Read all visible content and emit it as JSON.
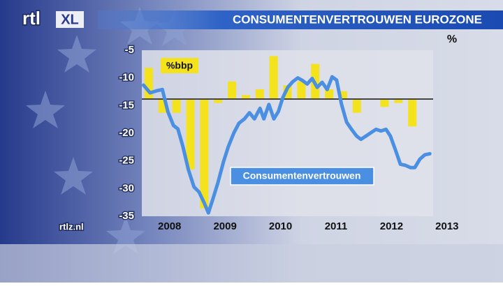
{
  "branding": {
    "logo": "rtl",
    "logo_suffix": "XL",
    "site": "rtlz.nl"
  },
  "chart_data": {
    "type": "combo",
    "title": "CONSUMENTENVERTROUWEN EUROZONE",
    "y_label": "%",
    "xlim": [
      2008,
      2013.25
    ],
    "xticks": [
      {
        "value": 2008.5,
        "label": "2008"
      },
      {
        "value": 2009.5,
        "label": "2009"
      },
      {
        "value": 2010.5,
        "label": "2010"
      },
      {
        "value": 2011.5,
        "label": "2011"
      },
      {
        "value": 2012.5,
        "label": "2012"
      },
      {
        "value": 2013.5,
        "label": "2013"
      }
    ],
    "ylim": [
      -35,
      -5
    ],
    "yticks": [
      -35,
      -30,
      -25,
      -20,
      -15,
      -10,
      -5
    ],
    "y2lim": [
      -3,
      1.25
    ],
    "series": [
      {
        "name": "%bbp",
        "type": "bar",
        "axis": "y2",
        "color": "#f3e21c",
        "x": [
          2008.125,
          2008.375,
          2008.625,
          2008.875,
          2009.125,
          2009.375,
          2009.625,
          2009.875,
          2010.125,
          2010.375,
          2010.625,
          2010.875,
          2011.125,
          2011.375,
          2011.625,
          2011.875,
          2012.125,
          2012.375,
          2012.625,
          2012.875
        ],
        "values": [
          0.8,
          -0.35,
          -0.35,
          -1.8,
          -2.8,
          -0.1,
          0.45,
          0.1,
          0.25,
          1.1,
          0.35,
          0.45,
          0.9,
          0.25,
          0.2,
          -0.35,
          0,
          -0.2,
          -0.1,
          -0.7
        ]
      },
      {
        "name": "Consumentenvertrouwen",
        "type": "line",
        "color": "#4a8fe2",
        "x": [
          2008.03,
          2008.15,
          2008.28,
          2008.37,
          2008.47,
          2008.57,
          2008.65,
          2008.74,
          2008.84,
          2008.94,
          2009.03,
          2009.12,
          2009.2,
          2009.28,
          2009.37,
          2009.47,
          2009.56,
          2009.66,
          2009.75,
          2009.85,
          2009.94,
          2010.03,
          2010.13,
          2010.2,
          2010.29,
          2010.38,
          2010.46,
          2010.54,
          2010.63,
          2010.72,
          2010.81,
          2010.9,
          2010.98,
          2011.07,
          2011.16,
          2011.25,
          2011.34,
          2011.43,
          2011.51,
          2011.6,
          2011.69,
          2011.78,
          2011.87,
          2011.95,
          2012.04,
          2012.13,
          2012.22,
          2012.31,
          2012.4,
          2012.48,
          2012.57,
          2012.66,
          2012.75,
          2012.84,
          2012.92,
          2013.01,
          2013.1,
          2013.19
        ],
        "values": [
          -11.3,
          -12.7,
          -12.3,
          -12.1,
          -16.1,
          -18.6,
          -19.2,
          -22.4,
          -26.6,
          -29.7,
          -30.6,
          -32.5,
          -34.4,
          -31.9,
          -29,
          -25.2,
          -22.4,
          -19.9,
          -18.2,
          -17.4,
          -16.3,
          -17.4,
          -15.5,
          -17.4,
          -14.8,
          -17.4,
          -16.1,
          -13.6,
          -11.7,
          -10.7,
          -10,
          -10.5,
          -11.1,
          -10.1,
          -11.7,
          -10.8,
          -12.1,
          -9.8,
          -10.4,
          -14.8,
          -18,
          -19.3,
          -20.5,
          -21.1,
          -20.5,
          -19.9,
          -19.3,
          -19.6,
          -19.3,
          -20.5,
          -23,
          -25.6,
          -25.8,
          -26.2,
          -26.2,
          -24.7,
          -23.9,
          -23.7
        ]
      }
    ]
  }
}
